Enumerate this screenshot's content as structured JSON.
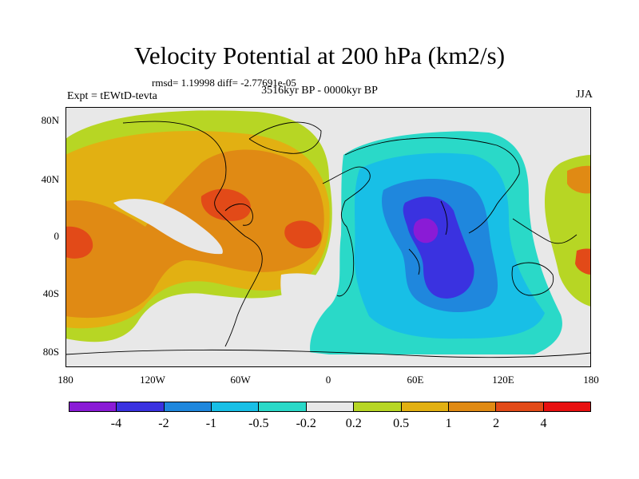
{
  "title": "Velocity Potential at 200 hPa (km2/s)",
  "stats_line": "rmsd= 1.19998 diff= -2.77691e-05",
  "period": "3516kyr BP - 0000kyr BP",
  "experiment": "Expt = tEWtD-tevta",
  "season": "JJA",
  "map": {
    "y_ticks": [
      "80N",
      "40N",
      "0",
      "40S",
      "80S"
    ],
    "x_ticks": [
      "180",
      "120W",
      "60W",
      "0",
      "60E",
      "120E",
      "180"
    ],
    "ocean_land_background": "#e8e8e8",
    "coastline_color": "#000000"
  },
  "colorbar": {
    "labels": [
      "-4",
      "-2",
      "-1",
      "-0.5",
      "-0.2",
      "0.2",
      "0.5",
      "1",
      "2",
      "4"
    ],
    "colors": [
      "#8a1bd6",
      "#3a32e0",
      "#1f87dd",
      "#18bfe6",
      "#2ad9c8",
      "#e8e8e8",
      "#b7d624",
      "#e2b012",
      "#e08a14",
      "#e24a18",
      "#e81010"
    ]
  }
}
